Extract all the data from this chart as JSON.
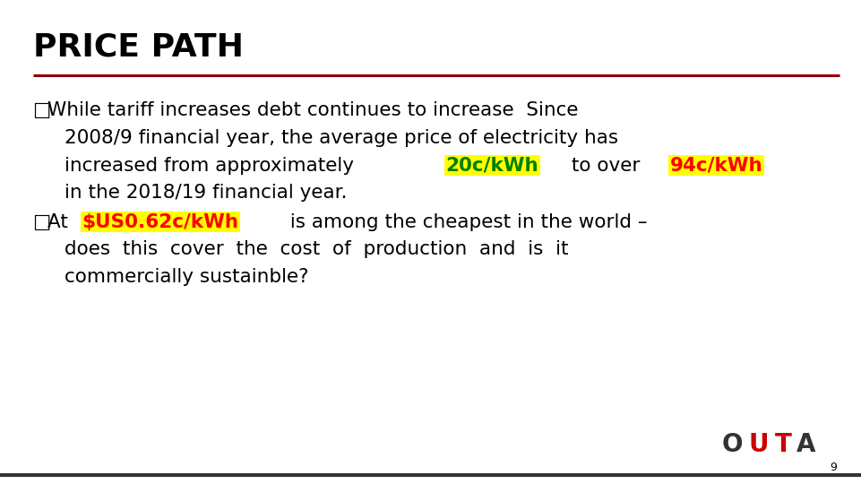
{
  "title": "PRICE PATH",
  "title_fontsize": 26,
  "title_color": "#000000",
  "separator_color": "#8B0000",
  "bg_color": "#ffffff",
  "text_fontsize": 15.5,
  "bullet_char": "□",
  "b1_line1": "While tariff increases debt continues to increase  Since",
  "b1_line2": "2008/9 financial year, the average price of electricity has",
  "b1_line3_pre": "increased from approximately ",
  "b1_highlight1_text": "20c/kWh",
  "b1_highlight1_color": "#008000",
  "b1_mid": " to over ",
  "b1_highlight2_text": "94c/kWh",
  "b1_highlight2_color": "#ff0000",
  "b1_line4": "in the 2018/19 financial year.",
  "b2_pre": "At ",
  "b2_highlight_text": "$US0.62c/kWh",
  "b2_highlight_color": "#ff0000",
  "b2_post": " is among the cheapest in the world –",
  "b2_line2": "does  this  cover  the  cost  of  production  and  is  it",
  "b2_line3": "commercially sustainble?",
  "highlight_bg": "#ffff00",
  "outa_O": "O",
  "outa_U": "U",
  "outa_T": "T",
  "outa_A": "A",
  "outa_color_main": "#333333",
  "outa_color_red": "#cc0000",
  "page_number": "9",
  "bottom_line_color": "#333333"
}
